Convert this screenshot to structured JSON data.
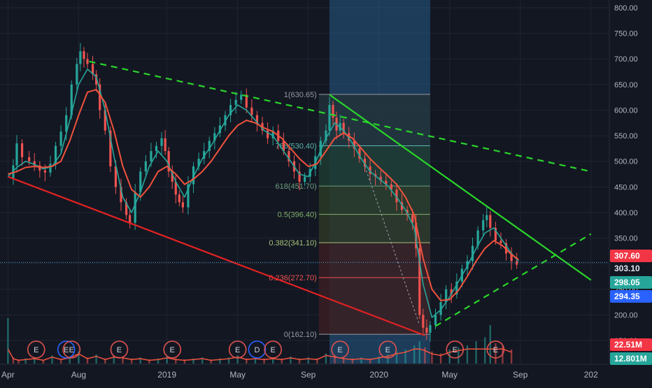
{
  "theme": {
    "background": "#131722",
    "grid": "#1f2433",
    "axis_text": "#b2b5be",
    "candle_up": "#26a69a",
    "candle_down": "#ef5350",
    "ma_fast": "#26a69a",
    "ma_slow": "#f0523d",
    "fib_line": "#9aa0ad",
    "trend_red": "#e32222",
    "trend_green": "#2ad52a",
    "price_band": "#2a6a9e"
  },
  "chart_data": {
    "type": "candlestick",
    "y_axis": {
      "ticks": [
        "800.00",
        "750.00",
        "700.00",
        "650.00",
        "600.00",
        "550.00",
        "500.00",
        "450.00",
        "400.00",
        "350.00",
        "300.00",
        "250.00",
        "200.00",
        "150.00"
      ],
      "values": [
        800,
        750,
        700,
        650,
        600,
        550,
        500,
        450,
        400,
        350,
        300,
        250,
        200,
        150
      ],
      "range": [
        105,
        815
      ]
    },
    "x_axis": {
      "labels": [
        "Apr",
        "Aug",
        "2019",
        "May",
        "Sep",
        "2020",
        "May",
        "Sep",
        "202"
      ],
      "months": [
        0,
        4,
        9,
        13,
        17,
        21,
        25,
        29,
        33
      ],
      "range": [
        -0.45,
        34
      ]
    },
    "price_series": [
      [
        0,
        465
      ],
      [
        0.3,
        492
      ],
      [
        0.5,
        535
      ],
      [
        0.8,
        508
      ],
      [
        1.2,
        500
      ],
      [
        1.5,
        492
      ],
      [
        1.8,
        482
      ],
      [
        2.1,
        478
      ],
      [
        2.4,
        495
      ],
      [
        2.7,
        530
      ],
      [
        3.0,
        558
      ],
      [
        3.3,
        590
      ],
      [
        3.6,
        650
      ],
      [
        3.9,
        690
      ],
      [
        4.1,
        715
      ],
      [
        4.3,
        700
      ],
      [
        4.5,
        690
      ],
      [
        4.8,
        670
      ],
      [
        5.0,
        650
      ],
      [
        5.2,
        600
      ],
      [
        5.5,
        560
      ],
      [
        5.8,
        490
      ],
      [
        6.1,
        450
      ],
      [
        6.4,
        420
      ],
      [
        6.7,
        395
      ],
      [
        6.9,
        380
      ],
      [
        7.2,
        440
      ],
      [
        7.5,
        480
      ],
      [
        7.8,
        500
      ],
      [
        8.1,
        520
      ],
      [
        8.4,
        530
      ],
      [
        8.7,
        545
      ],
      [
        8.9,
        520
      ],
      [
        9.1,
        480
      ],
      [
        9.3,
        460
      ],
      [
        9.5,
        435
      ],
      [
        9.7,
        420
      ],
      [
        9.9,
        410
      ],
      [
        10.2,
        455
      ],
      [
        10.5,
        490
      ],
      [
        10.8,
        505
      ],
      [
        11.1,
        520
      ],
      [
        11.4,
        540
      ],
      [
        11.7,
        555
      ],
      [
        12.0,
        570
      ],
      [
        12.3,
        590
      ],
      [
        12.6,
        610
      ],
      [
        12.9,
        620
      ],
      [
        13.2,
        630
      ],
      [
        13.5,
        605
      ],
      [
        13.8,
        590
      ],
      [
        14.1,
        575
      ],
      [
        14.4,
        560
      ],
      [
        14.7,
        545
      ],
      [
        15.0,
        560
      ],
      [
        15.3,
        540
      ],
      [
        15.6,
        520
      ],
      [
        15.9,
        500
      ],
      [
        16.2,
        480
      ],
      [
        16.5,
        460
      ],
      [
        16.8,
        470
      ],
      [
        17.1,
        485
      ],
      [
        17.4,
        510
      ],
      [
        17.7,
        540
      ],
      [
        18.0,
        560
      ],
      [
        18.2,
        610
      ],
      [
        18.4,
        585
      ],
      [
        18.6,
        560
      ],
      [
        18.8,
        575
      ],
      [
        19.0,
        555
      ],
      [
        19.3,
        540
      ],
      [
        19.6,
        525
      ],
      [
        19.9,
        505
      ],
      [
        20.2,
        490
      ],
      [
        20.5,
        475
      ],
      [
        20.8,
        470
      ],
      [
        21.1,
        462
      ],
      [
        21.4,
        455
      ],
      [
        21.7,
        445
      ],
      [
        22.0,
        420
      ],
      [
        22.3,
        405
      ],
      [
        22.6,
        395
      ],
      [
        22.9,
        380
      ],
      [
        23.1,
        330
      ],
      [
        23.3,
        200
      ],
      [
        23.5,
        175
      ],
      [
        23.7,
        165
      ],
      [
        23.9,
        180
      ],
      [
        24.2,
        200
      ],
      [
        24.5,
        225
      ],
      [
        24.8,
        250
      ],
      [
        25.1,
        240
      ],
      [
        25.4,
        265
      ],
      [
        25.7,
        290
      ],
      [
        26.0,
        305
      ],
      [
        26.3,
        335
      ],
      [
        26.6,
        365
      ],
      [
        26.9,
        385
      ],
      [
        27.1,
        395
      ],
      [
        27.3,
        370
      ],
      [
        27.6,
        345
      ],
      [
        27.9,
        340
      ],
      [
        28.2,
        320
      ],
      [
        28.5,
        305
      ],
      [
        28.8,
        298
      ]
    ],
    "ma_fast": [
      [
        0,
        470
      ],
      [
        0.5,
        488
      ],
      [
        1,
        500
      ],
      [
        1.5,
        494
      ],
      [
        2,
        485
      ],
      [
        2.5,
        490
      ],
      [
        3,
        515
      ],
      [
        3.5,
        580
      ],
      [
        4,
        650
      ],
      [
        4.5,
        680
      ],
      [
        5,
        665
      ],
      [
        5.5,
        600
      ],
      [
        6,
        510
      ],
      [
        6.5,
        430
      ],
      [
        7,
        400
      ],
      [
        7.5,
        440
      ],
      [
        8,
        490
      ],
      [
        8.5,
        520
      ],
      [
        9,
        500
      ],
      [
        9.5,
        460
      ],
      [
        10,
        430
      ],
      [
        10.5,
        470
      ],
      [
        11,
        505
      ],
      [
        11.5,
        530
      ],
      [
        12,
        560
      ],
      [
        12.5,
        590
      ],
      [
        13,
        610
      ],
      [
        13.5,
        600
      ],
      [
        14,
        580
      ],
      [
        14.5,
        560
      ],
      [
        15,
        550
      ],
      [
        15.5,
        525
      ],
      [
        16,
        500
      ],
      [
        16.5,
        475
      ],
      [
        17,
        470
      ],
      [
        17.5,
        505
      ],
      [
        18,
        545
      ],
      [
        18.5,
        575
      ],
      [
        19,
        560
      ],
      [
        19.5,
        535
      ],
      [
        20,
        505
      ],
      [
        20.5,
        480
      ],
      [
        21,
        466
      ],
      [
        21.5,
        452
      ],
      [
        22,
        430
      ],
      [
        22.5,
        405
      ],
      [
        23,
        370
      ],
      [
        23.5,
        260
      ],
      [
        24,
        195
      ],
      [
        24.5,
        210
      ],
      [
        25,
        235
      ],
      [
        25.5,
        265
      ],
      [
        26,
        295
      ],
      [
        26.5,
        330
      ],
      [
        27,
        360
      ],
      [
        27.5,
        370
      ],
      [
        28,
        345
      ],
      [
        28.5,
        320
      ],
      [
        28.9,
        305
      ]
    ],
    "ma_slow": [
      [
        0,
        475
      ],
      [
        0.5,
        480
      ],
      [
        1,
        488
      ],
      [
        1.5,
        490
      ],
      [
        2,
        488
      ],
      [
        2.5,
        490
      ],
      [
        3,
        500
      ],
      [
        3.5,
        540
      ],
      [
        4,
        590
      ],
      [
        4.5,
        635
      ],
      [
        5,
        640
      ],
      [
        5.5,
        615
      ],
      [
        6,
        560
      ],
      [
        6.5,
        490
      ],
      [
        7,
        445
      ],
      [
        7.5,
        430
      ],
      [
        8,
        450
      ],
      [
        8.5,
        480
      ],
      [
        9,
        490
      ],
      [
        9.5,
        475
      ],
      [
        10,
        455
      ],
      [
        10.5,
        465
      ],
      [
        11,
        480
      ],
      [
        11.5,
        500
      ],
      [
        12,
        525
      ],
      [
        12.5,
        550
      ],
      [
        13,
        570
      ],
      [
        13.5,
        580
      ],
      [
        14,
        575
      ],
      [
        14.5,
        565
      ],
      [
        15,
        558
      ],
      [
        15.5,
        545
      ],
      [
        16,
        525
      ],
      [
        16.5,
        505
      ],
      [
        17,
        490
      ],
      [
        17.5,
        495
      ],
      [
        18,
        520
      ],
      [
        18.5,
        545
      ],
      [
        19,
        555
      ],
      [
        19.5,
        545
      ],
      [
        20,
        525
      ],
      [
        20.5,
        505
      ],
      [
        21,
        488
      ],
      [
        21.5,
        472
      ],
      [
        22,
        455
      ],
      [
        22.5,
        430
      ],
      [
        23,
        395
      ],
      [
        23.5,
        310
      ],
      [
        24,
        250
      ],
      [
        24.5,
        228
      ],
      [
        25,
        230
      ],
      [
        25.5,
        248
      ],
      [
        26,
        275
      ],
      [
        26.5,
        305
      ],
      [
        27,
        330
      ],
      [
        27.5,
        345
      ],
      [
        28,
        335
      ],
      [
        28.5,
        318
      ],
      [
        28.9,
        308
      ]
    ],
    "volume_series": [
      [
        0,
        45
      ],
      [
        0.3,
        6
      ],
      [
        0.6,
        4
      ],
      [
        1,
        5
      ],
      [
        1.5,
        6
      ],
      [
        2,
        4
      ],
      [
        2.5,
        8
      ],
      [
        3,
        5
      ],
      [
        3.5,
        7
      ],
      [
        4,
        12
      ],
      [
        4.5,
        6
      ],
      [
        5,
        9
      ],
      [
        5.5,
        5
      ],
      [
        6,
        8
      ],
      [
        6.5,
        7
      ],
      [
        7,
        5
      ],
      [
        7.5,
        6
      ],
      [
        8,
        4
      ],
      [
        8.5,
        5
      ],
      [
        9,
        7
      ],
      [
        9.5,
        5
      ],
      [
        10,
        4
      ],
      [
        10.5,
        5
      ],
      [
        11,
        6
      ],
      [
        11.5,
        4
      ],
      [
        12,
        5
      ],
      [
        12.5,
        6
      ],
      [
        13,
        8
      ],
      [
        13.5,
        5
      ],
      [
        14,
        6
      ],
      [
        14.5,
        5
      ],
      [
        15,
        6
      ],
      [
        15.5,
        5
      ],
      [
        16,
        7
      ],
      [
        16.5,
        5
      ],
      [
        17,
        6
      ],
      [
        17.5,
        5
      ],
      [
        18,
        10
      ],
      [
        18.5,
        8
      ],
      [
        19,
        6
      ],
      [
        19.5,
        5
      ],
      [
        20,
        6
      ],
      [
        20.5,
        5
      ],
      [
        21,
        7
      ],
      [
        21.5,
        9
      ],
      [
        22,
        12
      ],
      [
        22.5,
        14
      ],
      [
        23,
        18
      ],
      [
        23.3,
        22
      ],
      [
        23.6,
        16
      ],
      [
        24,
        12
      ],
      [
        24.5,
        10
      ],
      [
        25,
        14
      ],
      [
        25.5,
        16
      ],
      [
        26,
        18
      ],
      [
        26.5,
        22
      ],
      [
        27,
        26
      ],
      [
        27.3,
        38
      ],
      [
        27.6,
        20
      ],
      [
        28,
        18
      ],
      [
        28.5,
        14
      ]
    ],
    "fibonacci": {
      "x_start": 17.6,
      "x_end": 23.9,
      "levels": [
        {
          "label": "1(630.65)",
          "price": 630.65,
          "color": "#9598a1",
          "fill": "#2b2f3a"
        },
        {
          "label": "786(530.40)",
          "price": 530.4,
          "color": "#5ab4ac",
          "fill": "#22323a"
        },
        {
          "label": "618(451.70)",
          "price": 451.7,
          "color": "#6a9c7a",
          "fill": "#1f3a30"
        },
        {
          "label": "0.5(396.40)",
          "price": 396.4,
          "color": "#7fb06a",
          "fill": "#2a3a26"
        },
        {
          "label": "0.382(341.10)",
          "price": 341.1,
          "color": "#a6c27a",
          "fill": "#2e3626"
        },
        {
          "label": "0.236(272.70)",
          "price": 272.7,
          "color": "#ef5350",
          "fill": "#3a1f22"
        },
        {
          "label": "0(162.10)",
          "price": 162.1,
          "color": "#9598a1",
          "fill": "#3a1f22"
        }
      ]
    },
    "trendlines": [
      {
        "name": "red-support",
        "color": "#e32222",
        "dashed": false,
        "from": [
          0,
          470
        ],
        "to": [
          23.6,
          160
        ]
      },
      {
        "name": "green-dashed-top",
        "color": "#2ad52a",
        "dashed": true,
        "from": [
          4.6,
          695
        ],
        "to": [
          33,
          480
        ]
      },
      {
        "name": "green-solid",
        "color": "#2ad52a",
        "dashed": false,
        "from": [
          18.2,
          630
        ],
        "to": [
          33,
          268
        ]
      },
      {
        "name": "green-dashed-bottom",
        "color": "#2ad52a",
        "dashed": true,
        "from": [
          24.2,
          178
        ],
        "to": [
          33,
          358
        ]
      }
    ],
    "reference_line": {
      "price": 302.5,
      "color": "#4a9fd8"
    },
    "price_band": {
      "x_start": 18.2,
      "x_end": 23.9
    },
    "price_labels": [
      {
        "text": "307.60",
        "price": 307.6,
        "bg": "#f23645",
        "fg": "#ffffff"
      },
      {
        "text": "303.10",
        "price": 303.1,
        "bg": "#131722",
        "fg": "#e0e3eb"
      },
      {
        "text": "298.05",
        "price": 298.05,
        "bg": "#26a69a",
        "fg": "#ffffff"
      },
      {
        "text": "294.35",
        "price": 294.35,
        "bg": "#2962ff",
        "fg": "#ffffff"
      }
    ],
    "volume_labels": [
      {
        "text": "22.51M",
        "bg": "#f23645",
        "fg": "#ffffff"
      },
      {
        "text": "12.801M",
        "bg": "#26a69a",
        "fg": "#ffffff"
      }
    ],
    "events": [
      {
        "month": 1.6,
        "text": "E",
        "color": "#e0524f"
      },
      {
        "month": 3.3,
        "text": "E",
        "color": "#2962ff"
      },
      {
        "month": 3.6,
        "text": "E",
        "color": "#e0524f"
      },
      {
        "month": 6.3,
        "text": "E",
        "color": "#e0524f"
      },
      {
        "month": 9.3,
        "text": "E",
        "color": "#e0524f"
      },
      {
        "month": 13.0,
        "text": "E",
        "color": "#e0524f"
      },
      {
        "month": 14.1,
        "text": "D",
        "color": "#2962ff"
      },
      {
        "month": 15.0,
        "text": "E",
        "color": "#e0524f"
      },
      {
        "month": 18.8,
        "text": "E",
        "color": "#e0524f"
      },
      {
        "month": 21.5,
        "text": "E",
        "color": "#e0524f"
      },
      {
        "month": 25.3,
        "text": "E",
        "color": "#e0524f"
      },
      {
        "month": 27.6,
        "text": "E",
        "color": "#e0524f"
      }
    ]
  }
}
